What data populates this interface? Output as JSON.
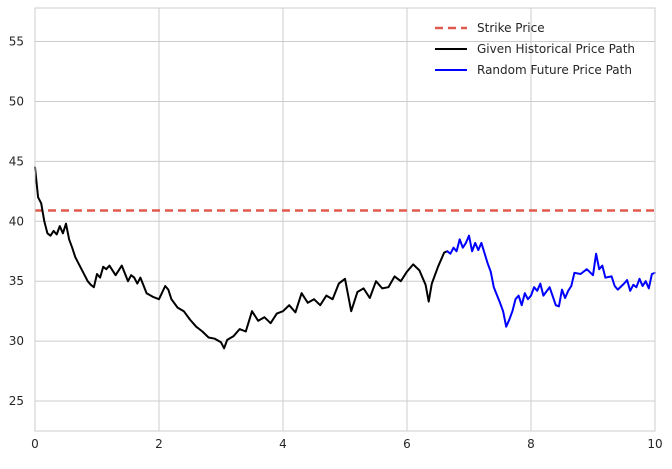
{
  "chart_data": {
    "type": "line",
    "xlim": [
      0,
      10
    ],
    "ylim": [
      22.5,
      57.8
    ],
    "xticks": [
      "0",
      "2",
      "4",
      "6",
      "8",
      "10"
    ],
    "yticks": [
      "25",
      "30",
      "35",
      "40",
      "45",
      "50",
      "55"
    ],
    "grid": true,
    "legend_position": "top-right",
    "colors": {
      "strike": "#e05a4f",
      "historical": "#000000",
      "future": "#0000ff",
      "grid": "#cccccc",
      "axes": "#cccccc"
    },
    "strike_price": {
      "name": "Strike Price",
      "value": 40.9
    },
    "series": [
      {
        "name": "Given Historical Price Path",
        "x": [
          0.0,
          0.05,
          0.1,
          0.15,
          0.2,
          0.25,
          0.3,
          0.35,
          0.4,
          0.45,
          0.5,
          0.55,
          0.6,
          0.65,
          0.7,
          0.75,
          0.8,
          0.85,
          0.9,
          0.95,
          1.0,
          1.05,
          1.1,
          1.15,
          1.2,
          1.3,
          1.4,
          1.5,
          1.55,
          1.6,
          1.65,
          1.7,
          1.8,
          1.9,
          2.0,
          2.1,
          2.15,
          2.2,
          2.3,
          2.4,
          2.5,
          2.6,
          2.7,
          2.8,
          2.9,
          3.0,
          3.05,
          3.1,
          3.2,
          3.3,
          3.4,
          3.5,
          3.6,
          3.7,
          3.8,
          3.9,
          4.0,
          4.1,
          4.2,
          4.3,
          4.4,
          4.5,
          4.6,
          4.7,
          4.8,
          4.9,
          5.0,
          5.1,
          5.2,
          5.3,
          5.4,
          5.5,
          5.6,
          5.7,
          5.8,
          5.9,
          6.0,
          6.1,
          6.2,
          6.3,
          6.35,
          6.4,
          6.5,
          6.6,
          6.65
        ],
        "y": [
          44.5,
          42.0,
          41.5,
          40.0,
          39.0,
          38.8,
          39.2,
          38.9,
          39.6,
          39.0,
          39.8,
          38.5,
          37.8,
          37.0,
          36.5,
          36.0,
          35.5,
          35.0,
          34.7,
          34.5,
          35.6,
          35.3,
          36.2,
          36.0,
          36.3,
          35.5,
          36.3,
          35.0,
          35.5,
          35.3,
          34.8,
          35.3,
          34.0,
          33.7,
          33.5,
          34.6,
          34.3,
          33.5,
          32.8,
          32.5,
          31.8,
          31.2,
          30.8,
          30.3,
          30.2,
          29.9,
          29.4,
          30.1,
          30.4,
          31.0,
          30.8,
          32.5,
          31.7,
          32.0,
          31.5,
          32.3,
          32.5,
          33.0,
          32.4,
          34.0,
          33.2,
          33.5,
          33.0,
          33.8,
          33.5,
          34.8,
          35.2,
          32.5,
          34.1,
          34.4,
          33.6,
          35.0,
          34.4,
          34.5,
          35.4,
          35.0,
          35.8,
          36.4,
          35.9,
          34.7,
          33.3,
          34.8,
          36.2,
          37.4,
          37.5
        ]
      },
      {
        "name": "Random Future Price Path",
        "x": [
          6.65,
          6.7,
          6.75,
          6.8,
          6.85,
          6.9,
          6.95,
          7.0,
          7.05,
          7.1,
          7.15,
          7.2,
          7.3,
          7.35,
          7.4,
          7.5,
          7.55,
          7.6,
          7.65,
          7.7,
          7.75,
          7.8,
          7.85,
          7.9,
          7.95,
          8.0,
          8.05,
          8.1,
          8.15,
          8.2,
          8.3,
          8.4,
          8.45,
          8.5,
          8.55,
          8.6,
          8.65,
          8.7,
          8.8,
          8.9,
          9.0,
          9.05,
          9.1,
          9.15,
          9.2,
          9.3,
          9.35,
          9.4,
          9.5,
          9.55,
          9.6,
          9.65,
          9.7,
          9.75,
          9.8,
          9.85,
          9.9,
          9.95,
          10.0
        ],
        "y": [
          37.5,
          37.3,
          37.8,
          37.5,
          38.5,
          37.8,
          38.2,
          38.8,
          37.5,
          38.2,
          37.6,
          38.2,
          36.5,
          35.8,
          34.5,
          33.2,
          32.5,
          31.2,
          31.8,
          32.5,
          33.5,
          33.8,
          33.0,
          34.0,
          33.5,
          33.8,
          34.5,
          34.2,
          34.8,
          33.8,
          34.5,
          33.0,
          32.9,
          34.3,
          33.6,
          34.2,
          34.6,
          35.7,
          35.6,
          36.0,
          35.5,
          37.3,
          36.0,
          36.3,
          35.3,
          35.4,
          34.6,
          34.3,
          34.8,
          35.1,
          34.2,
          34.7,
          34.5,
          35.2,
          34.6,
          35.0,
          34.4,
          35.6,
          35.7
        ]
      }
    ]
  }
}
